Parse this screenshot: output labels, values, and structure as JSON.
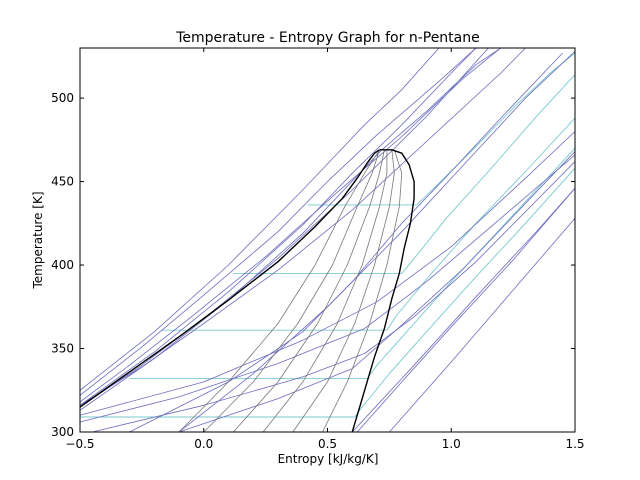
{
  "chart_data": {
    "type": "line",
    "title": "Temperature - Entropy Graph for n-Pentane",
    "xlabel": "Entropy [kJ/kg/K]",
    "ylabel": "Temperature [K]",
    "xlim": [
      -0.5,
      1.5
    ],
    "ylim": [
      300,
      530
    ],
    "xticks": [
      -0.5,
      0.0,
      0.5,
      1.0,
      1.5
    ],
    "xtick_labels": [
      "−0.5",
      "0.0",
      "0.5",
      "1.0",
      "1.5"
    ],
    "yticks": [
      300,
      350,
      400,
      450,
      500
    ],
    "ytick_labels": [
      "300",
      "350",
      "400",
      "450",
      "500"
    ],
    "grid": false,
    "colors": {
      "saturation": "#000000",
      "isobar": "#6c6cc0",
      "isobar_light": "#79c9cf",
      "quality": "#777777"
    },
    "saturation_dome": {
      "liquid": [
        [
          -0.5,
          315
        ],
        [
          -0.3,
          336
        ],
        [
          -0.1,
          357
        ],
        [
          0.1,
          379
        ],
        [
          0.3,
          402
        ],
        [
          0.45,
          423
        ],
        [
          0.56,
          440
        ],
        [
          0.62,
          452
        ],
        [
          0.66,
          461
        ],
        [
          0.69,
          467
        ],
        [
          0.71,
          469
        ]
      ],
      "vapor": [
        [
          0.71,
          469
        ],
        [
          0.76,
          469
        ],
        [
          0.8,
          467
        ],
        [
          0.83,
          460
        ],
        [
          0.85,
          450
        ],
        [
          0.85,
          440
        ],
        [
          0.835,
          425
        ],
        [
          0.81,
          410
        ],
        [
          0.79,
          395
        ],
        [
          0.76,
          380
        ],
        [
          0.73,
          362
        ],
        [
          0.69,
          345
        ],
        [
          0.66,
          330
        ],
        [
          0.63,
          315
        ],
        [
          0.61,
          305
        ],
        [
          0.6,
          300
        ]
      ]
    },
    "isobars_light": [
      {
        "points": [
          [
            -0.5,
            309
          ],
          [
            0.61,
            309
          ],
          [
            0.64,
            315
          ],
          [
            0.75,
            335
          ],
          [
            0.9,
            360
          ],
          [
            1.1,
            393
          ],
          [
            1.3,
            425
          ],
          [
            1.5,
            458
          ]
        ]
      },
      {
        "points": [
          [
            -0.3,
            332
          ],
          [
            0.66,
            332
          ],
          [
            0.7,
            340
          ],
          [
            0.82,
            360
          ],
          [
            1.0,
            390
          ],
          [
            1.2,
            422
          ],
          [
            1.5,
            470
          ]
        ]
      },
      {
        "points": [
          [
            -0.17,
            361
          ],
          [
            0.74,
            361
          ],
          [
            0.78,
            370
          ],
          [
            0.92,
            395
          ],
          [
            1.1,
            425
          ],
          [
            1.3,
            456
          ],
          [
            1.5,
            488
          ]
        ]
      },
      {
        "points": [
          [
            0.12,
            395
          ],
          [
            0.8,
            395
          ],
          [
            0.84,
            402
          ],
          [
            0.98,
            428
          ],
          [
            1.15,
            456
          ],
          [
            1.35,
            490
          ],
          [
            1.5,
            514
          ]
        ]
      },
      {
        "points": [
          [
            0.42,
            436
          ],
          [
            0.86,
            436
          ],
          [
            0.93,
            446
          ],
          [
            1.08,
            468
          ],
          [
            1.25,
            494
          ],
          [
            1.4,
            515
          ],
          [
            1.5,
            527
          ]
        ]
      }
    ],
    "isobars": [
      {
        "points": [
          [
            -0.5,
            316
          ],
          [
            -0.2,
            348
          ],
          [
            0.1,
            384
          ],
          [
            0.4,
            424
          ],
          [
            0.6,
            455
          ],
          [
            0.8,
            484
          ],
          [
            1.0,
            515
          ],
          [
            1.1,
            530
          ]
        ]
      },
      {
        "points": [
          [
            -0.5,
            313
          ],
          [
            -0.2,
            344
          ],
          [
            0.1,
            379
          ],
          [
            0.4,
            419
          ],
          [
            0.72,
            469
          ],
          [
            0.9,
            492
          ],
          [
            1.1,
            520
          ],
          [
            1.2,
            530
          ]
        ]
      },
      {
        "points": [
          [
            -0.5,
            310
          ],
          [
            0.0,
            330
          ],
          [
            0.4,
            355
          ],
          [
            0.7,
            378
          ],
          [
            1.0,
            411
          ],
          [
            1.3,
            452
          ],
          [
            1.5,
            480
          ]
        ]
      },
      {
        "points": [
          [
            -0.5,
            306
          ],
          [
            -0.1,
            321
          ],
          [
            0.3,
            341
          ],
          [
            0.65,
            362
          ],
          [
            0.9,
            390
          ],
          [
            1.2,
            428
          ],
          [
            1.5,
            466
          ]
        ]
      },
      {
        "points": [
          [
            -0.45,
            300
          ],
          [
            0.0,
            316
          ],
          [
            0.4,
            333
          ],
          [
            0.65,
            347
          ],
          [
            0.85,
            369
          ],
          [
            1.1,
            402
          ],
          [
            1.3,
            432
          ],
          [
            1.5,
            462
          ]
        ]
      },
      {
        "points": [
          [
            -0.5,
            322
          ],
          [
            -0.25,
            351
          ],
          [
            0.0,
            382
          ],
          [
            0.3,
            420
          ],
          [
            0.5,
            450
          ],
          [
            0.7,
            478
          ],
          [
            0.95,
            510
          ],
          [
            1.1,
            530
          ]
        ]
      },
      {
        "points": [
          [
            -0.5,
            325
          ],
          [
            -0.2,
            360
          ],
          [
            0.1,
            400
          ],
          [
            0.4,
            445
          ],
          [
            0.65,
            484
          ],
          [
            0.8,
            505
          ],
          [
            0.95,
            530
          ]
        ]
      },
      {
        "points": [
          [
            -0.5,
            315
          ],
          [
            -0.25,
            340
          ],
          [
            0.0,
            368
          ],
          [
            0.3,
            404
          ],
          [
            0.6,
            445
          ],
          [
            0.9,
            489
          ],
          [
            1.15,
            530
          ]
        ]
      },
      {
        "points": [
          [
            -0.5,
            316
          ],
          [
            -0.25,
            339
          ],
          [
            0.0,
            365
          ],
          [
            0.3,
            397
          ],
          [
            0.6,
            433
          ],
          [
            0.9,
            474
          ],
          [
            1.2,
            515
          ],
          [
            1.3,
            530
          ]
        ]
      },
      {
        "points": [
          [
            -0.5,
            318
          ],
          [
            -0.3,
            340
          ],
          [
            -0.05,
            369
          ],
          [
            0.25,
            405
          ],
          [
            0.55,
            445
          ],
          [
            0.8,
            477
          ],
          [
            1.05,
            512
          ],
          [
            1.2,
            530
          ]
        ]
      },
      {
        "points": [
          [
            -0.1,
            300
          ],
          [
            0.3,
            320
          ],
          [
            0.6,
            338
          ],
          [
            0.8,
            364
          ],
          [
            1.05,
            398
          ],
          [
            1.3,
            437
          ],
          [
            1.5,
            468
          ]
        ]
      },
      {
        "points": [
          [
            0.62,
            300
          ],
          [
            0.8,
            330
          ],
          [
            1.0,
            363
          ],
          [
            1.25,
            403
          ],
          [
            1.5,
            446
          ]
        ]
      },
      {
        "points": [
          [
            0.6,
            300
          ],
          [
            0.85,
            340
          ],
          [
            1.1,
            381
          ],
          [
            1.35,
            421
          ],
          [
            1.5,
            446
          ]
        ]
      },
      {
        "points": [
          [
            0.75,
            300
          ],
          [
            1.0,
            342
          ],
          [
            1.25,
            385
          ],
          [
            1.5,
            428
          ]
        ]
      },
      {
        "points": [
          [
            -0.1,
            300
          ],
          [
            0.2,
            335
          ],
          [
            0.5,
            375
          ],
          [
            0.8,
            420
          ],
          [
            1.05,
            460
          ],
          [
            1.3,
            500
          ],
          [
            1.5,
            528
          ]
        ]
      },
      {
        "points": [
          [
            -0.3,
            300
          ],
          [
            0.1,
            330
          ],
          [
            0.4,
            360
          ],
          [
            0.6,
            390
          ],
          [
            0.8,
            425
          ],
          [
            1.0,
            456
          ],
          [
            1.2,
            488
          ],
          [
            1.45,
            527
          ]
        ]
      }
    ],
    "quality_lines": [
      {
        "points": [
          [
            -0.1,
            300
          ],
          [
            0.1,
            330
          ],
          [
            0.3,
            365
          ],
          [
            0.45,
            400
          ],
          [
            0.57,
            435
          ],
          [
            0.65,
            455
          ],
          [
            0.71,
            469
          ]
        ]
      },
      {
        "points": [
          [
            0.0,
            300
          ],
          [
            0.2,
            330
          ],
          [
            0.38,
            365
          ],
          [
            0.52,
            400
          ],
          [
            0.62,
            435
          ],
          [
            0.68,
            455
          ],
          [
            0.71,
            469
          ]
        ]
      },
      {
        "points": [
          [
            0.12,
            300
          ],
          [
            0.3,
            330
          ],
          [
            0.46,
            365
          ],
          [
            0.58,
            400
          ],
          [
            0.67,
            435
          ],
          [
            0.71,
            455
          ],
          [
            0.73,
            469
          ]
        ]
      },
      {
        "points": [
          [
            0.24,
            300
          ],
          [
            0.4,
            330
          ],
          [
            0.54,
            365
          ],
          [
            0.64,
            400
          ],
          [
            0.71,
            435
          ],
          [
            0.74,
            455
          ],
          [
            0.74,
            469
          ]
        ]
      },
      {
        "points": [
          [
            0.36,
            300
          ],
          [
            0.5,
            330
          ],
          [
            0.61,
            365
          ],
          [
            0.69,
            400
          ],
          [
            0.75,
            435
          ],
          [
            0.77,
            455
          ],
          [
            0.76,
            469
          ]
        ]
      },
      {
        "points": [
          [
            0.48,
            300
          ],
          [
            0.58,
            330
          ],
          [
            0.67,
            365
          ],
          [
            0.74,
            400
          ],
          [
            0.79,
            435
          ],
          [
            0.8,
            455
          ],
          [
            0.77,
            469
          ]
        ]
      }
    ]
  }
}
